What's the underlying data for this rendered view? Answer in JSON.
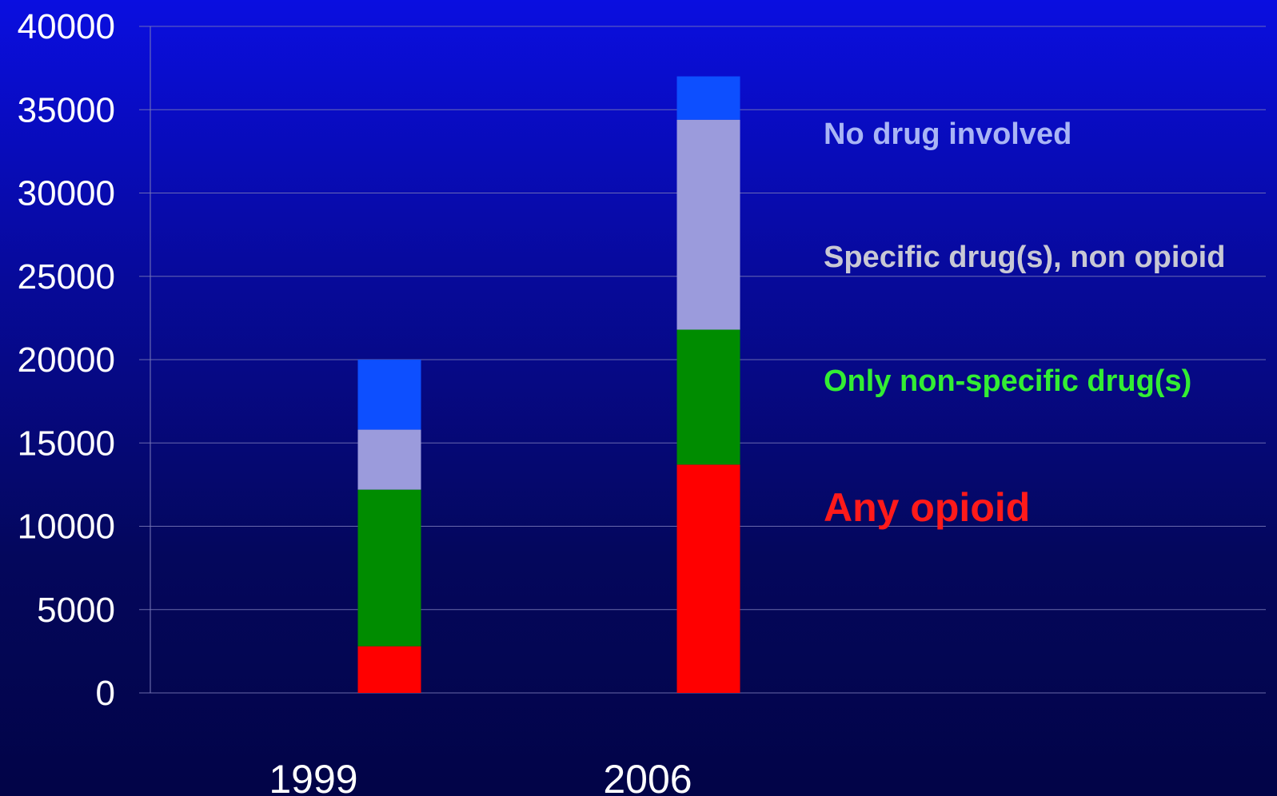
{
  "chart_data": {
    "type": "bar",
    "stacked": true,
    "categories": [
      "1999",
      "2006"
    ],
    "series": [
      {
        "name": "Any opioid",
        "values": [
          2800,
          13700
        ],
        "color": "#ff0000"
      },
      {
        "name": "Only non-specific drug(s)",
        "values": [
          9400,
          8100
        ],
        "color": "#008c00"
      },
      {
        "name": "Specific drug(s), non opioid",
        "values": [
          3600,
          12600
        ],
        "color": "#9b9bdc"
      },
      {
        "name": "No drug involved",
        "values": [
          4200,
          2600
        ],
        "color": "#0d4fff"
      }
    ],
    "legend_colors": [
      "#ff1a1a",
      "#33ee33",
      "#c8c8d4",
      "#a9b5f5"
    ],
    "ylim": [
      0,
      40000
    ],
    "yticks": [
      "0",
      "5000",
      "10000",
      "15000",
      "20000",
      "25000",
      "30000",
      "35000",
      "40000"
    ],
    "grid": true,
    "legend_position": "right",
    "title": "",
    "xlabel": "",
    "ylabel": ""
  }
}
